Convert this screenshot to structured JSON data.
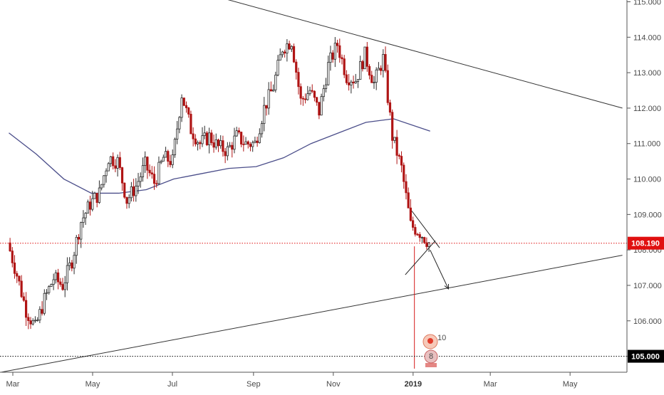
{
  "chart_data": {
    "type": "candlestick",
    "instrument_note": "",
    "title": "",
    "y_axis": {
      "range": [
        104.55,
        115.05
      ],
      "ticks": [
        "105.000",
        "106.000",
        "107.000",
        "108.000",
        "109.000",
        "110.000",
        "111.000",
        "112.000",
        "113.000",
        "114.000",
        "115.000"
      ],
      "position": "right"
    },
    "x_axis": {
      "labels": [
        {
          "text": "Mar",
          "month": "2018-03"
        },
        {
          "text": "May",
          "month": "2018-05"
        },
        {
          "text": "Jul",
          "month": "2018-07"
        },
        {
          "text": "Sep",
          "month": "2018-09"
        },
        {
          "text": "Nov",
          "month": "2018-11"
        },
        {
          "text": "2019",
          "month": "2019-01",
          "bold": true
        },
        {
          "text": "Mar",
          "month": "2019-03"
        },
        {
          "text": "May",
          "month": "2019-05"
        }
      ]
    },
    "price_tags": [
      {
        "label": "108.190",
        "value": 108.19,
        "color": "#e01010",
        "line": "dotted-red"
      },
      {
        "label": "105.000",
        "value": 105.0,
        "color": "#000000",
        "line": "dotted-black"
      }
    ],
    "series": [
      {
        "name": "",
        "kind": "ohlc-close-path",
        "points": [
          [
            "2018-02-26",
            108.2
          ],
          [
            "2018-03-05",
            107.3
          ],
          [
            "2018-03-12",
            106.3
          ],
          [
            "2018-03-19",
            105.8
          ],
          [
            "2018-03-26",
            106.6
          ],
          [
            "2018-04-02",
            107.2
          ],
          [
            "2018-04-09",
            107.0
          ],
          [
            "2018-04-16",
            107.7
          ],
          [
            "2018-04-23",
            108.8
          ],
          [
            "2018-04-30",
            109.3
          ],
          [
            "2018-05-07",
            109.6
          ],
          [
            "2018-05-14",
            110.6
          ],
          [
            "2018-05-21",
            110.5
          ],
          [
            "2018-05-28",
            109.4
          ],
          [
            "2018-06-04",
            109.8
          ],
          [
            "2018-06-11",
            110.4
          ],
          [
            "2018-06-18",
            109.9
          ],
          [
            "2018-06-25",
            110.6
          ],
          [
            "2018-07-02",
            110.5
          ],
          [
            "2018-07-09",
            112.4
          ],
          [
            "2018-07-16",
            111.4
          ],
          [
            "2018-07-23",
            111.0
          ],
          [
            "2018-07-30",
            111.2
          ],
          [
            "2018-08-06",
            110.9
          ],
          [
            "2018-08-13",
            110.8
          ],
          [
            "2018-08-20",
            111.2
          ],
          [
            "2018-08-27",
            111.0
          ],
          [
            "2018-09-03",
            111.0
          ],
          [
            "2018-09-10",
            112.0
          ],
          [
            "2018-09-17",
            112.6
          ],
          [
            "2018-09-24",
            113.7
          ],
          [
            "2018-10-01",
            113.9
          ],
          [
            "2018-10-08",
            112.2
          ],
          [
            "2018-10-15",
            112.5
          ],
          [
            "2018-10-22",
            111.9
          ],
          [
            "2018-10-29",
            113.2
          ],
          [
            "2018-11-05",
            113.8
          ],
          [
            "2018-11-12",
            112.9
          ],
          [
            "2018-11-19",
            112.8
          ],
          [
            "2018-11-26",
            113.5
          ],
          [
            "2018-12-03",
            112.7
          ],
          [
            "2018-12-10",
            113.4
          ],
          [
            "2018-12-17",
            111.2
          ],
          [
            "2018-12-24",
            110.3
          ],
          [
            "2018-12-31",
            108.7
          ],
          [
            "2019-01-07",
            108.5
          ],
          [
            "2019-01-14",
            108.2
          ]
        ]
      },
      {
        "name": "",
        "kind": "moving-average",
        "color": "#4b4e8a",
        "points": [
          [
            "2018-02-26",
            111.3
          ],
          [
            "2018-03-19",
            110.7
          ],
          [
            "2018-04-09",
            110.0
          ],
          [
            "2018-04-30",
            109.6
          ],
          [
            "2018-05-21",
            109.6
          ],
          [
            "2018-06-11",
            109.7
          ],
          [
            "2018-07-02",
            110.0
          ],
          [
            "2018-07-23",
            110.15
          ],
          [
            "2018-08-13",
            110.3
          ],
          [
            "2018-09-03",
            110.35
          ],
          [
            "2018-09-24",
            110.6
          ],
          [
            "2018-10-15",
            111.0
          ],
          [
            "2018-11-05",
            111.3
          ],
          [
            "2018-11-26",
            111.6
          ],
          [
            "2018-12-17",
            111.7
          ],
          [
            "2019-01-14",
            111.35
          ]
        ]
      }
    ],
    "trendlines": [
      {
        "name": "",
        "from": [
          "2018-06-25",
          115.55
        ],
        "to": [
          "2019-06-10",
          112.0
        ]
      },
      {
        "name": "",
        "from": [
          "2018-02-20",
          104.55
        ],
        "to": [
          "2019-06-10",
          107.85
        ]
      }
    ],
    "annotations": [
      {
        "type": "triangle",
        "points": [
          [
            "2018-12-31",
            109.1
          ],
          [
            "2019-01-18",
            108.1
          ],
          [
            "2018-12-26",
            107.3
          ]
        ]
      },
      {
        "type": "arrow",
        "from": [
          "2019-01-14",
          108.0
        ],
        "to": [
          "2019-01-28",
          106.9
        ]
      },
      {
        "type": "event-badges",
        "labels": [
          "10",
          "8"
        ]
      }
    ],
    "grid": false,
    "legend": "none"
  }
}
